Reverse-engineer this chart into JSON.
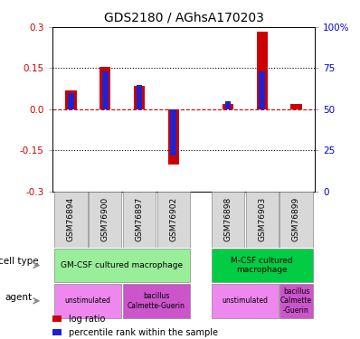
{
  "title": "GDS2180 / AGhsA170203",
  "samples": [
    "GSM76894",
    "GSM76900",
    "GSM76897",
    "GSM76902",
    "GSM76898",
    "GSM76903",
    "GSM76899"
  ],
  "log_ratio": [
    0.07,
    0.155,
    0.085,
    -0.2,
    0.02,
    0.285,
    0.02
  ],
  "percentile_rank": [
    60,
    73,
    65,
    22,
    55,
    73,
    50
  ],
  "ylim": [
    -0.3,
    0.3
  ],
  "yticks_left": [
    -0.3,
    -0.15,
    0.0,
    0.15,
    0.3
  ],
  "yticks_right": [
    0,
    25,
    50,
    75,
    100
  ],
  "bar_color_red": "#cc0000",
  "bar_color_blue": "#2222cc",
  "zero_line_color": "#cc0000",
  "cell_type_row": [
    {
      "label": "GM-CSF cultured macrophage",
      "start": 0,
      "end": 4,
      "color": "#99ee99"
    },
    {
      "label": "M-CSF cultured\nmacrophage",
      "start": 4,
      "end": 7,
      "color": "#00cc44"
    }
  ],
  "agent_row": [
    {
      "label": "unstimulated",
      "start": 0,
      "end": 2,
      "color": "#ee88ee"
    },
    {
      "label": "bacillus\nCalmette-Guerin",
      "start": 2,
      "end": 4,
      "color": "#cc55cc"
    },
    {
      "label": "unstimulated",
      "start": 4,
      "end": 6,
      "color": "#ee88ee"
    },
    {
      "label": "bacillus\nCalmette\n-Guerin",
      "start": 6,
      "end": 7,
      "color": "#cc55cc"
    }
  ],
  "tick_label_color_left": "#cc0000",
  "tick_label_color_right": "#0000cc",
  "group1_size": 4,
  "group2_size": 3
}
